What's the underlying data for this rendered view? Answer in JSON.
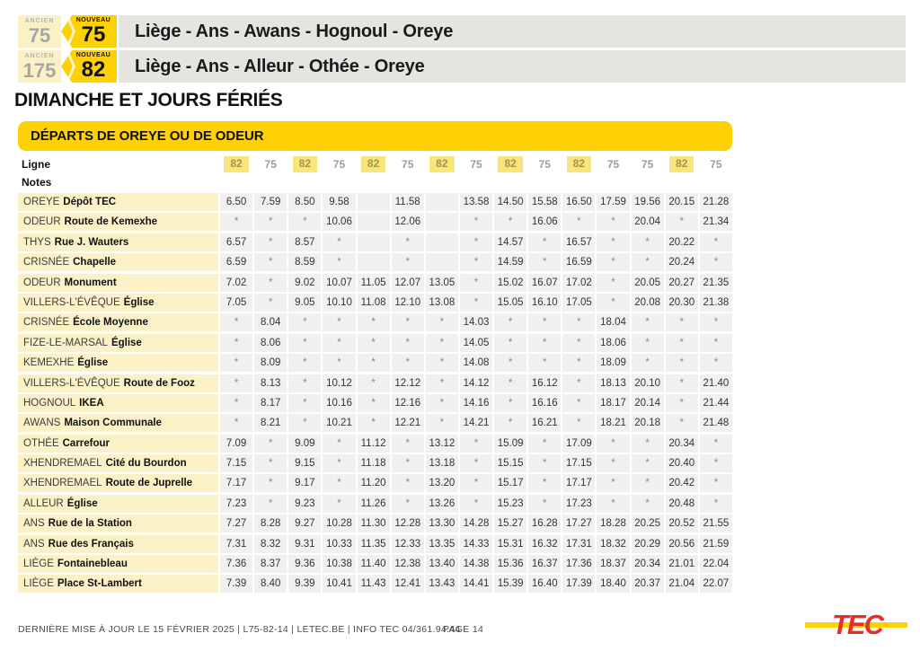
{
  "header": {
    "routes": [
      {
        "ancien_label": "ANCIEN",
        "ancien_number": "75",
        "nouveau_label": "NOUVEAU",
        "nouveau_number": "75",
        "title": "Liège - Ans - Awans - Hognoul - Oreye"
      },
      {
        "ancien_label": "ANCIEN",
        "ancien_number": "175",
        "nouveau_label": "NOUVEAU",
        "nouveau_number": "82",
        "title": "Liège - Ans - Alleur - Othée - Oreye"
      }
    ],
    "section_title": "DIMANCHE ET JOURS FÉRIÉS"
  },
  "table": {
    "title": "DÉPARTS DE OREYE OU DE ODEUR",
    "ligne_label": "Ligne",
    "notes_label": "Notes",
    "highlighted_line": "82",
    "no_stop_symbol": "*",
    "lines": [
      "82",
      "75",
      "82",
      "75",
      "82",
      "75",
      "82",
      "75",
      "82",
      "75",
      "82",
      "75",
      "75",
      "82",
      "75"
    ],
    "stops": [
      {
        "place": "OREYE",
        "name": "Dépôt TEC",
        "times": [
          "6.50",
          "7.59",
          "8.50",
          "9.58",
          "",
          "11.58",
          "",
          "13.58",
          "14.50",
          "15.58",
          "16.50",
          "17.59",
          "19.56",
          "20.15",
          "21.28"
        ]
      },
      {
        "place": "ODEUR",
        "name": "Route de Kemexhe",
        "times": [
          "*",
          "*",
          "*",
          "10.06",
          "",
          "12.06",
          "",
          "*",
          "*",
          "16.06",
          "*",
          "*",
          "20.04",
          "*",
          "21.34"
        ]
      },
      {
        "place": "THYS",
        "name": "Rue J. Wauters",
        "times": [
          "6.57",
          "*",
          "8.57",
          "*",
          "",
          "*",
          "",
          "*",
          "14.57",
          "*",
          "16.57",
          "*",
          "*",
          "20.22",
          "*"
        ]
      },
      {
        "place": "CRISNÉE",
        "name": "Chapelle",
        "times": [
          "6.59",
          "*",
          "8.59",
          "*",
          "",
          "*",
          "",
          "*",
          "14.59",
          "*",
          "16.59",
          "*",
          "*",
          "20.24",
          "*"
        ]
      },
      {
        "place": "ODEUR",
        "name": "Monument",
        "times": [
          "7.02",
          "*",
          "9.02",
          "10.07",
          "11.05",
          "12.07",
          "13.05",
          "*",
          "15.02",
          "16.07",
          "17.02",
          "*",
          "20.05",
          "20.27",
          "21.35"
        ]
      },
      {
        "place": "VILLERS-L'ÉVÊQUE",
        "name": "Église",
        "times": [
          "7.05",
          "*",
          "9.05",
          "10.10",
          "11.08",
          "12.10",
          "13.08",
          "*",
          "15.05",
          "16.10",
          "17.05",
          "*",
          "20.08",
          "20.30",
          "21.38"
        ]
      },
      {
        "place": "CRISNÉE",
        "name": "École Moyenne",
        "times": [
          "*",
          "8.04",
          "*",
          "*",
          "*",
          "*",
          "*",
          "14.03",
          "*",
          "*",
          "*",
          "18.04",
          "*",
          "*",
          "*"
        ]
      },
      {
        "place": "FIZE-LE-MARSAL",
        "name": "Église",
        "times": [
          "*",
          "8.06",
          "*",
          "*",
          "*",
          "*",
          "*",
          "14.05",
          "*",
          "*",
          "*",
          "18.06",
          "*",
          "*",
          "*"
        ]
      },
      {
        "place": "KEMEXHE",
        "name": "Église",
        "times": [
          "*",
          "8.09",
          "*",
          "*",
          "*",
          "*",
          "*",
          "14.08",
          "*",
          "*",
          "*",
          "18.09",
          "*",
          "*",
          "*"
        ]
      },
      {
        "place": "VILLERS-L'ÉVÊQUE",
        "name": "Route de Fooz",
        "times": [
          "*",
          "8.13",
          "*",
          "10.12",
          "*",
          "12.12",
          "*",
          "14.12",
          "*",
          "16.12",
          "*",
          "18.13",
          "20.10",
          "*",
          "21.40"
        ]
      },
      {
        "place": "HOGNOUL",
        "name": "IKEA",
        "times": [
          "*",
          "8.17",
          "*",
          "10.16",
          "*",
          "12.16",
          "*",
          "14.16",
          "*",
          "16.16",
          "*",
          "18.17",
          "20.14",
          "*",
          "21.44"
        ]
      },
      {
        "place": "AWANS",
        "name": "Maison Communale",
        "times": [
          "*",
          "8.21",
          "*",
          "10.21",
          "*",
          "12.21",
          "*",
          "14.21",
          "*",
          "16.21",
          "*",
          "18.21",
          "20.18",
          "*",
          "21.48"
        ]
      },
      {
        "place": "OTHÉE",
        "name": "Carrefour",
        "times": [
          "7.09",
          "*",
          "9.09",
          "*",
          "11.12",
          "*",
          "13.12",
          "*",
          "15.09",
          "*",
          "17.09",
          "*",
          "*",
          "20.34",
          "*"
        ]
      },
      {
        "place": "XHENDREMAEL",
        "name": "Cité du Bourdon",
        "times": [
          "7.15",
          "*",
          "9.15",
          "*",
          "11.18",
          "*",
          "13.18",
          "*",
          "15.15",
          "*",
          "17.15",
          "*",
          "*",
          "20.40",
          "*"
        ]
      },
      {
        "place": "XHENDREMAEL",
        "name": "Route de Juprelle",
        "times": [
          "7.17",
          "*",
          "9.17",
          "*",
          "11.20",
          "*",
          "13.20",
          "*",
          "15.17",
          "*",
          "17.17",
          "*",
          "*",
          "20.42",
          "*"
        ]
      },
      {
        "place": "ALLEUR",
        "name": "Église",
        "times": [
          "7.23",
          "*",
          "9.23",
          "*",
          "11.26",
          "*",
          "13.26",
          "*",
          "15.23",
          "*",
          "17.23",
          "*",
          "*",
          "20.48",
          "*"
        ]
      },
      {
        "place": "ANS",
        "name": "Rue de la Station",
        "times": [
          "7.27",
          "8.28",
          "9.27",
          "10.28",
          "11.30",
          "12.28",
          "13.30",
          "14.28",
          "15.27",
          "16.28",
          "17.27",
          "18.28",
          "20.25",
          "20.52",
          "21.55"
        ]
      },
      {
        "place": "ANS",
        "name": "Rue des Français",
        "times": [
          "7.31",
          "8.32",
          "9.31",
          "10.33",
          "11.35",
          "12.33",
          "13.35",
          "14.33",
          "15.31",
          "16.32",
          "17.31",
          "18.32",
          "20.29",
          "20.56",
          "21.59"
        ]
      },
      {
        "place": "LIÈGE",
        "name": "Fontainebleau",
        "times": [
          "7.36",
          "8.37",
          "9.36",
          "10.38",
          "11.40",
          "12.38",
          "13.40",
          "14.38",
          "15.36",
          "16.37",
          "17.36",
          "18.37",
          "20.34",
          "21.01",
          "22.04"
        ]
      },
      {
        "place": "LIÈGE",
        "name": "Place St-Lambert",
        "times": [
          "7.39",
          "8.40",
          "9.39",
          "10.41",
          "11.43",
          "12.41",
          "13.43",
          "14.41",
          "15.39",
          "16.40",
          "17.39",
          "18.40",
          "20.37",
          "21.04",
          "22.07"
        ]
      }
    ]
  },
  "footer": {
    "info": "DERNIÈRE MISE À JOUR LE 15 FÉVRIER 2025  |  L75-82-14  |  LETEC.BE  |  INFO TEC 04/361.94.44",
    "page": "PAGE 14",
    "logo_text": "TEC"
  },
  "colors": {
    "brand_yellow": "#fdd105",
    "pale_yellow": "#faf1c7",
    "band_gray": "#e6e4e1",
    "cell_gray": "#f1f0ee",
    "chip_yellow": "#f8e57c",
    "chip_text": "#a2954a",
    "logo_red": "#e2312a"
  }
}
